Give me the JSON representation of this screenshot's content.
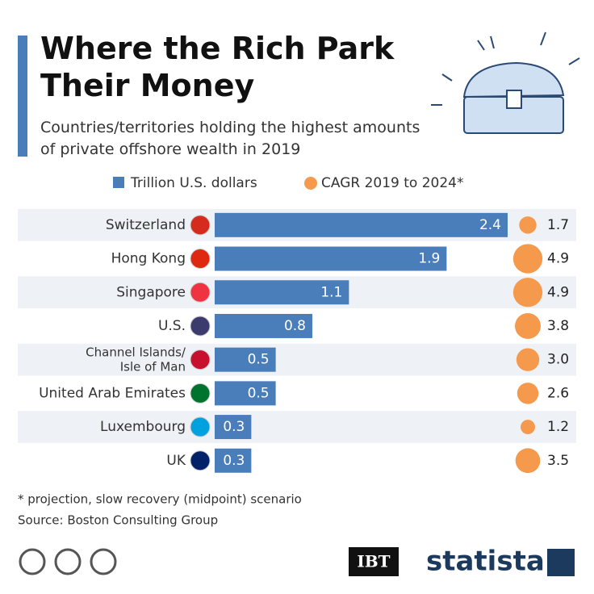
{
  "chart_data": {
    "type": "bar",
    "title": "Where the Rich Park Their Money",
    "subtitle": "Countries/territories holding the highest amounts of private offshore wealth in 2019",
    "categories": [
      "Switzerland",
      "Hong Kong",
      "Singapore",
      "U.S.",
      "Channel Islands/ Isle of Man",
      "United Arab Emirates",
      "Luxembourg",
      "UK"
    ],
    "series": [
      {
        "name": "Trillion U.S. dollars",
        "color": "#4a7ebb",
        "values": [
          2.4,
          1.9,
          1.1,
          0.8,
          0.5,
          0.5,
          0.3,
          0.3
        ]
      },
      {
        "name": "CAGR 2019 to 2024*",
        "color": "#f59a4c",
        "values": [
          1.7,
          4.9,
          4.9,
          3.8,
          3.0,
          2.6,
          1.2,
          3.5
        ],
        "value_labels": [
          "1.7",
          "4.9",
          "4.9",
          "3.8",
          "3.0",
          "2.6",
          "1.2",
          "3.5"
        ]
      }
    ],
    "xlim": [
      0,
      2.4
    ],
    "footnote": "* projection, slow recovery (midpoint) scenario",
    "source": "Source: Boston Consulting Group",
    "brands": [
      "IBT",
      "statista"
    ]
  }
}
